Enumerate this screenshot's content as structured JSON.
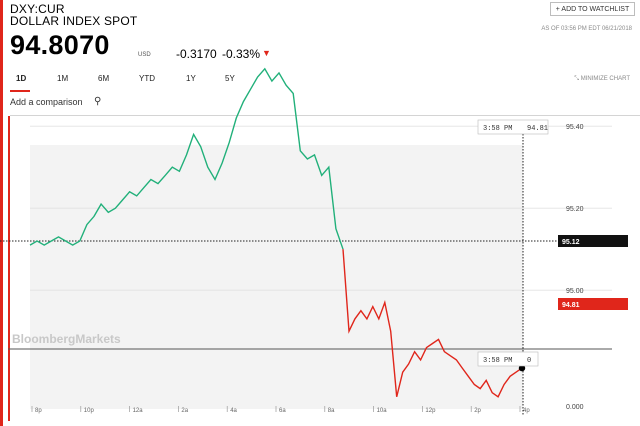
{
  "header": {
    "ticker": "DXY:CUR",
    "name": "DOLLAR INDEX SPOT",
    "watchlist_label": "+ ADD TO WATCHLIST",
    "as_of": "AS OF 03:56 PM EDT 06/21/2018"
  },
  "quote": {
    "price": "94.8070",
    "currency": "USD",
    "change": "-0.3170",
    "change_pct": "-0.33%",
    "direction_icon": "triangle-down-icon",
    "down_color": "#e0261b",
    "up_color": "#21b07a"
  },
  "ranges": [
    {
      "label": "1D",
      "active": true
    },
    {
      "label": "1M",
      "active": false
    },
    {
      "label": "6M",
      "active": false
    },
    {
      "label": "YTD",
      "active": false
    },
    {
      "label": "1Y",
      "active": false
    },
    {
      "label": "5Y",
      "active": false
    }
  ],
  "minimize_label": "MINIMIZE CHART",
  "minimize_icon": "collapse-icon",
  "comparison": {
    "placeholder": "Add a comparison",
    "icon": "search-icon"
  },
  "chart_data": {
    "type": "line",
    "y_ticks": [
      "95.40",
      "95.20",
      "95.00",
      "0.000"
    ],
    "x_ticks": [
      "8p",
      "10p",
      "12a",
      "2a",
      "4a",
      "6a",
      "8a",
      "10a",
      "12p",
      "2p",
      "4p"
    ],
    "prev_close": "95.12",
    "last": "94.81",
    "tooltip_top": {
      "time": "3:58 PM",
      "value": "94.81"
    },
    "tooltip_bottom": {
      "time": "3:58 PM",
      "value": "0"
    },
    "watermark": "BloombergMarkets",
    "series": [
      {
        "values": [
          95.11,
          95.12,
          95.11,
          95.12,
          95.13,
          95.12,
          95.11,
          95.12,
          95.16,
          95.18,
          95.21,
          95.19,
          95.2,
          95.22,
          95.24,
          95.23,
          95.25,
          95.27,
          95.26,
          95.28,
          95.3,
          95.29,
          95.33,
          95.38,
          95.35,
          95.3,
          95.27,
          95.31,
          95.36,
          95.42,
          95.46,
          95.49,
          95.52,
          95.54,
          95.51,
          95.53,
          95.5,
          95.48,
          95.34,
          95.32,
          95.33,
          95.28,
          95.3,
          95.15,
          95.1
        ]
      },
      {
        "values": [
          95.1,
          94.9,
          94.93,
          94.95,
          94.93,
          94.96,
          94.93,
          94.97,
          94.9,
          94.74,
          94.8,
          94.82,
          94.85,
          94.83,
          94.86,
          94.87,
          94.88,
          94.85,
          94.84,
          94.83,
          94.81,
          94.79,
          94.77,
          94.76,
          94.78,
          94.75,
          94.74,
          94.77,
          94.79,
          94.8,
          94.81
        ]
      }
    ]
  }
}
